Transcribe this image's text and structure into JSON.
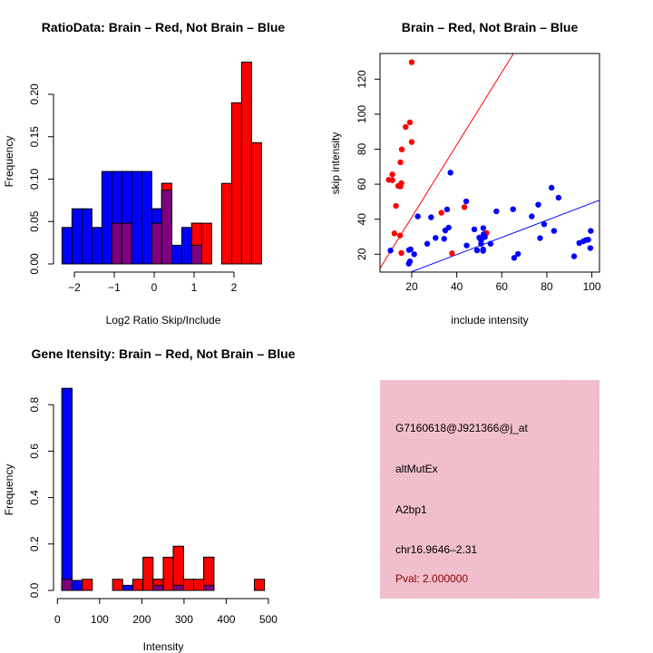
{
  "colors": {
    "brain": "#ff0000",
    "not_brain": "#0000ff",
    "overlap": "#800080",
    "pval": "#8b0000",
    "panel": "#f2bccb"
  },
  "chart_data": [
    {
      "type": "bar",
      "title": "RatioData: Brain – Red, Not Brain – Blue",
      "xlabel": "Log2 Ratio Skip/Include",
      "ylabel": "Frequency",
      "xticks": [
        "−2",
        "−1",
        "0",
        "1",
        "2"
      ],
      "xtick_values": [
        -2,
        -1,
        0,
        1,
        2
      ],
      "yticks": [
        "0.00",
        "0.05",
        "0.10",
        "0.15",
        "0.20"
      ],
      "ytick_values": [
        0,
        0.05,
        0.1,
        0.15,
        0.2
      ],
      "bin_start": -2.31,
      "bin_width": 0.25,
      "series": [
        {
          "name": "Not Brain",
          "color": "#0000ff",
          "values": [
            0.043,
            0.065,
            0.065,
            0.043,
            0.109,
            0.109,
            0.109,
            0.109,
            0.109,
            0.065,
            0.087,
            0.022,
            0.043,
            0.022,
            0,
            0,
            0,
            0,
            0,
            0
          ]
        },
        {
          "name": "Brain",
          "color": "#ff0000",
          "values": [
            0,
            0,
            0,
            0,
            0,
            0.048,
            0.048,
            0,
            0,
            0.048,
            0.095,
            0,
            0,
            0.048,
            0.048,
            0,
            0.095,
            0.19,
            0.238,
            0.143
          ]
        }
      ]
    },
    {
      "type": "scatter",
      "title": "Brain – Red, Not Brain – Blue",
      "xlabel": "include intensity",
      "ylabel": "skip intensity",
      "xticks": [
        "20",
        "40",
        "60",
        "80",
        "100"
      ],
      "xtick_values": [
        20,
        40,
        60,
        80,
        100
      ],
      "yticks": [
        "20",
        "40",
        "60",
        "80",
        "100",
        "120"
      ],
      "ytick_values": [
        20,
        40,
        60,
        80,
        100,
        120
      ],
      "xlim": [
        5.9,
        103.3
      ],
      "ylim": [
        9.8,
        134.7
      ],
      "lines": [
        {
          "name": "Brain fit",
          "color": "#ff0000",
          "slope": 2.07,
          "intercept": -0.3
        },
        {
          "name": "Not Brain fit",
          "color": "#0000ff",
          "slope": 0.49,
          "intercept": 0.2
        }
      ],
      "series": [
        {
          "name": "Brain",
          "color": "#ff0000",
          "points": [
            [
              20,
              129.7
            ],
            [
              19.2,
              95.3
            ],
            [
              17.3,
              92.7
            ],
            [
              20,
              84.1
            ],
            [
              15.6,
              79.9
            ],
            [
              15,
              72.5
            ],
            [
              11.4,
              65.6
            ],
            [
              9.8,
              62.5
            ],
            [
              11.4,
              62.3
            ],
            [
              15.4,
              60.6
            ],
            [
              14,
              59
            ],
            [
              15,
              58.7
            ],
            [
              13,
              47.6
            ],
            [
              12.3,
              31.9
            ],
            [
              14.8,
              30.7
            ],
            [
              15.4,
              20.7
            ],
            [
              33.2,
              43.7
            ],
            [
              43.4,
              46.9
            ],
            [
              37.9,
              20.5
            ],
            [
              53.2,
              32.1
            ]
          ]
        },
        {
          "name": "Not Brain",
          "color": "#0000ff",
          "points": [
            [
              10.6,
              22.1
            ],
            [
              18.8,
              22.4
            ],
            [
              19.5,
              22.8
            ],
            [
              18.7,
              14.6
            ],
            [
              19.2,
              15.9
            ],
            [
              21.1,
              20
            ],
            [
              22.7,
              41.6
            ],
            [
              28.6,
              41.1
            ],
            [
              26.9,
              26
            ],
            [
              30.6,
              29.3
            ],
            [
              34.4,
              28.8
            ],
            [
              35.7,
              45.6
            ],
            [
              34.9,
              33.6
            ],
            [
              36.4,
              35.2
            ],
            [
              37.2,
              66.6
            ],
            [
              44.2,
              50.2
            ],
            [
              44.4,
              25
            ],
            [
              47.8,
              34.2
            ],
            [
              49,
              22.2
            ],
            [
              50,
              29.5
            ],
            [
              50.8,
              27.9
            ],
            [
              50.8,
              26
            ],
            [
              51.8,
              34.9
            ],
            [
              51.9,
              31.4
            ],
            [
              51.7,
              22.8
            ],
            [
              51.7,
              21.9
            ],
            [
              52.5,
              29.8
            ],
            [
              55,
              26
            ],
            [
              57.6,
              44.5
            ],
            [
              65,
              45.7
            ],
            [
              65.5,
              17.9
            ],
            [
              67.2,
              20.2
            ],
            [
              73.3,
              41.6
            ],
            [
              76.2,
              48.3
            ],
            [
              77,
              29.2
            ],
            [
              78.8,
              37.1
            ],
            [
              82.1,
              58
            ],
            [
              83.2,
              33.3
            ],
            [
              85.2,
              52.3
            ],
            [
              92.1,
              18.8
            ],
            [
              94.4,
              26.4
            ],
            [
              96.2,
              27.4
            ],
            [
              97.3,
              28.1
            ],
            [
              98.4,
              28.3
            ],
            [
              99.5,
              33.3
            ],
            [
              99.3,
              23.5
            ]
          ]
        }
      ]
    },
    {
      "type": "bar",
      "title": "Gene Itensity: Brain – Red, Not Brain – Blue",
      "xlabel": "Intensity",
      "ylabel": "Frequency",
      "xticks": [
        "0",
        "100",
        "200",
        "300",
        "400",
        "500"
      ],
      "xtick_values": [
        0,
        100,
        200,
        300,
        400,
        500
      ],
      "yticks": [
        "0.0",
        "0.2",
        "0.4",
        "0.6",
        "0.8"
      ],
      "ytick_values": [
        0,
        0.2,
        0.4,
        0.6,
        0.8
      ],
      "bin_start": 10.7,
      "bin_width": 24,
      "series": [
        {
          "name": "Not Brain",
          "color": "#0000ff",
          "values": [
            0.87,
            0.043,
            0,
            0,
            0,
            0,
            0.022,
            0,
            0,
            0.022,
            0,
            0.022,
            0,
            0,
            0.022,
            0,
            0,
            0,
            0,
            0
          ]
        },
        {
          "name": "Brain",
          "color": "#ff0000",
          "values": [
            0.048,
            0,
            0.048,
            0,
            0,
            0.048,
            0,
            0.048,
            0.143,
            0.048,
            0.143,
            0.19,
            0.048,
            0.048,
            0.143,
            0,
            0,
            0,
            0,
            0.048
          ]
        }
      ]
    }
  ],
  "info_panel": {
    "probe_id": "G7160618@J921366@j_at",
    "event_type": "altMutEx",
    "gene": "A2bp1",
    "location": "chr16.9646–2.31",
    "pval": "Pval: 2.000000"
  }
}
